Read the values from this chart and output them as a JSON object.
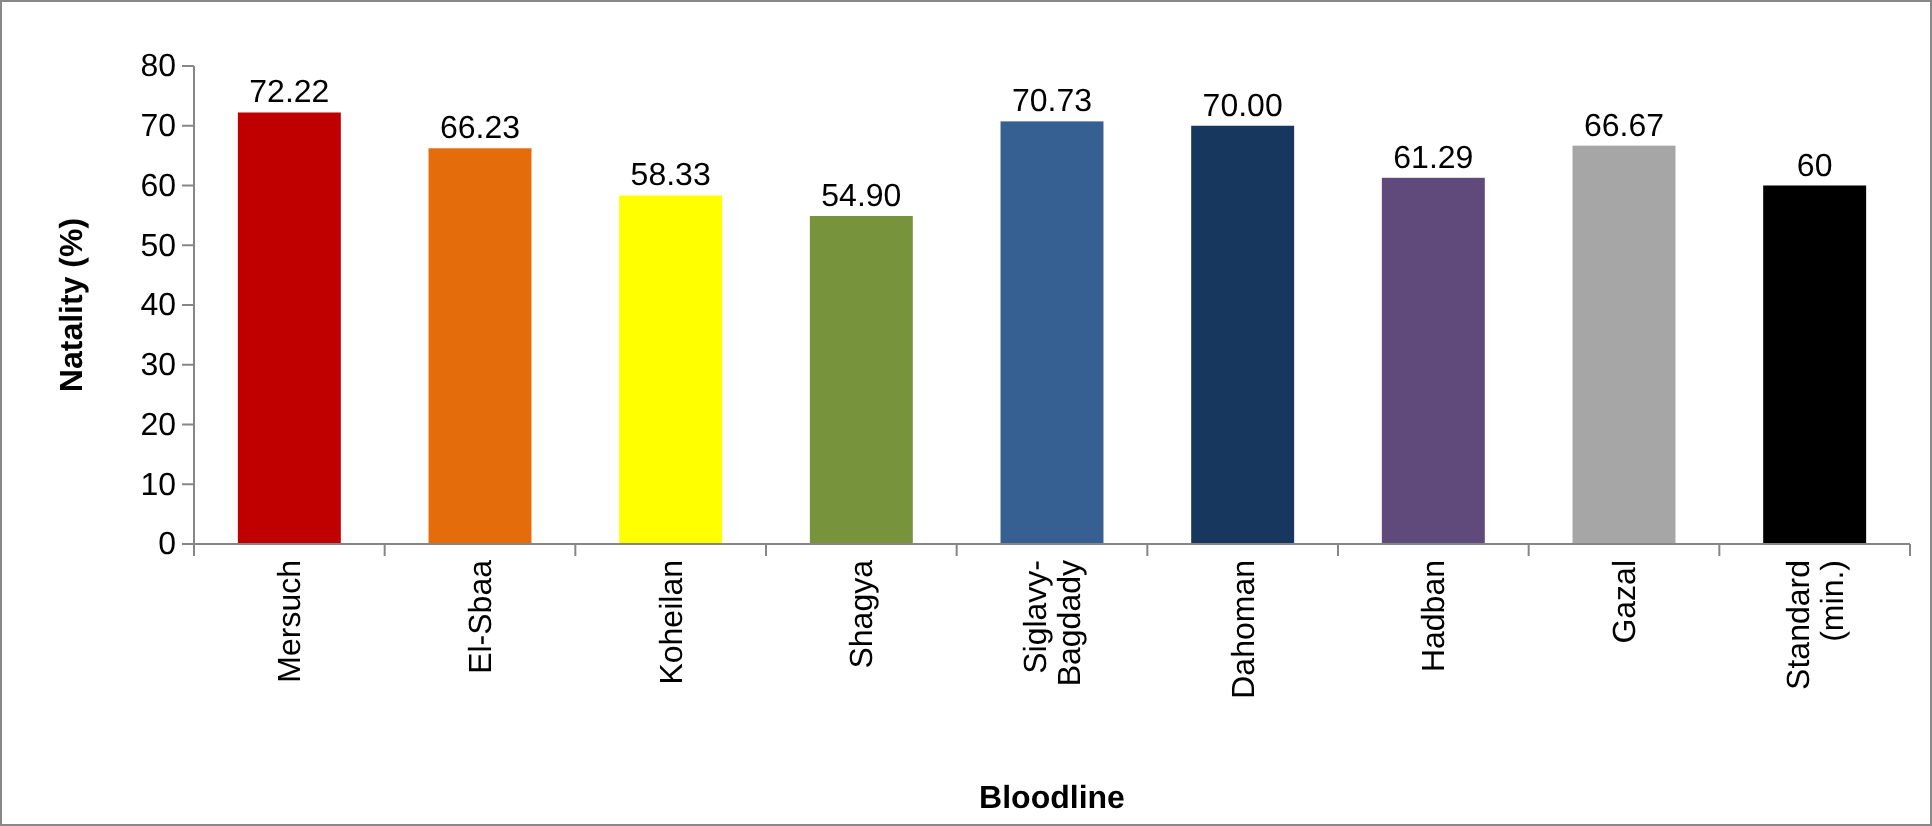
{
  "chart_data": {
    "type": "bar",
    "xlabel": "Bloodline",
    "ylabel": "Natality (%)",
    "categories": [
      "Mersuch",
      "El-Sbaa",
      "Koheilan",
      "Shagya",
      "Siglavy-Bagdady",
      "Dahoman",
      "Hadban",
      "Gazal",
      "Standard (min.)"
    ],
    "values": [
      72.22,
      66.23,
      58.33,
      54.9,
      70.73,
      70,
      61.29,
      66.67,
      60
    ],
    "colors": [
      "#c00000",
      "#e46c0a",
      "#ffff00",
      "#77933c",
      "#376092",
      "#17375e",
      "#604a7b",
      "#a6a6a6",
      "#000000"
    ],
    "value_labels": [
      "72.22",
      "66.23",
      "58.33",
      "54.90",
      "70.73",
      "70.00",
      "61.29",
      "66.67",
      "60"
    ],
    "ylim": [
      0,
      80
    ],
    "yticks": [
      0,
      10,
      20,
      30,
      40,
      50,
      60,
      70,
      80
    ],
    "grid": false
  }
}
